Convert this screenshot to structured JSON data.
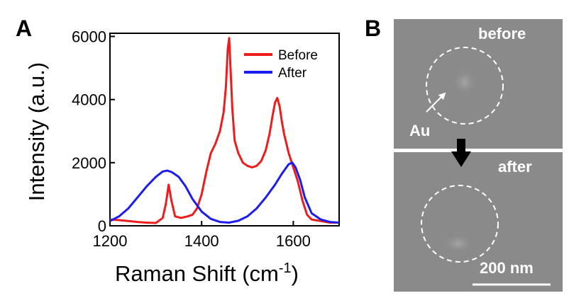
{
  "panels": {
    "a_letter": "A",
    "b_letter": "B"
  },
  "chart_data": {
    "type": "line",
    "xlabel": "Raman Shift (cm",
    "xlabel_sup": "-1",
    "xlabel_close": ")",
    "ylabel": "Intensity (a.u.)",
    "xlim": [
      1200,
      1700
    ],
    "ylim": [
      0,
      6100
    ],
    "xticks": [
      1200,
      1400,
      1600
    ],
    "yticks": [
      0,
      2000,
      4000,
      6000
    ],
    "legend_position": "top-right",
    "grid": false,
    "series": [
      {
        "name": "Before",
        "color": "#ee1c1c",
        "x": [
          1200,
          1220,
          1240,
          1260,
          1280,
          1300,
          1315,
          1322,
          1328,
          1334,
          1342,
          1355,
          1370,
          1380,
          1390,
          1400,
          1410,
          1420,
          1430,
          1440,
          1448,
          1453,
          1457,
          1460,
          1463,
          1467,
          1472,
          1480,
          1490,
          1500,
          1510,
          1520,
          1530,
          1540,
          1548,
          1555,
          1560,
          1565,
          1570,
          1575,
          1580,
          1590,
          1600,
          1610,
          1620,
          1630,
          1640,
          1660,
          1680,
          1700
        ],
        "values": [
          200,
          180,
          150,
          120,
          100,
          90,
          250,
          700,
          1300,
          800,
          300,
          250,
          300,
          350,
          550,
          1000,
          1700,
          2300,
          2600,
          3000,
          3600,
          4400,
          5600,
          5950,
          5000,
          3700,
          2700,
          2300,
          2000,
          1900,
          1850,
          1900,
          2050,
          2400,
          2900,
          3500,
          3900,
          4050,
          3800,
          3300,
          2900,
          2300,
          1850,
          1400,
          800,
          350,
          200,
          150,
          100,
          100
        ]
      },
      {
        "name": "After",
        "color": "#1c1cee",
        "x": [
          1200,
          1220,
          1240,
          1260,
          1280,
          1300,
          1315,
          1325,
          1335,
          1350,
          1365,
          1380,
          1400,
          1420,
          1440,
          1460,
          1480,
          1500,
          1520,
          1540,
          1560,
          1575,
          1590,
          1598,
          1605,
          1615,
          1625,
          1640,
          1660,
          1680,
          1700
        ],
        "values": [
          150,
          300,
          550,
          900,
          1250,
          1550,
          1720,
          1750,
          1700,
          1550,
          1250,
          850,
          450,
          220,
          120,
          100,
          160,
          300,
          550,
          900,
          1300,
          1650,
          1950,
          2000,
          1850,
          1450,
          900,
          400,
          200,
          120,
          100
        ]
      }
    ]
  },
  "image_panel": {
    "before_label": "before",
    "after_label": "after",
    "au_label": "Au",
    "scale_label": "200 nm"
  }
}
